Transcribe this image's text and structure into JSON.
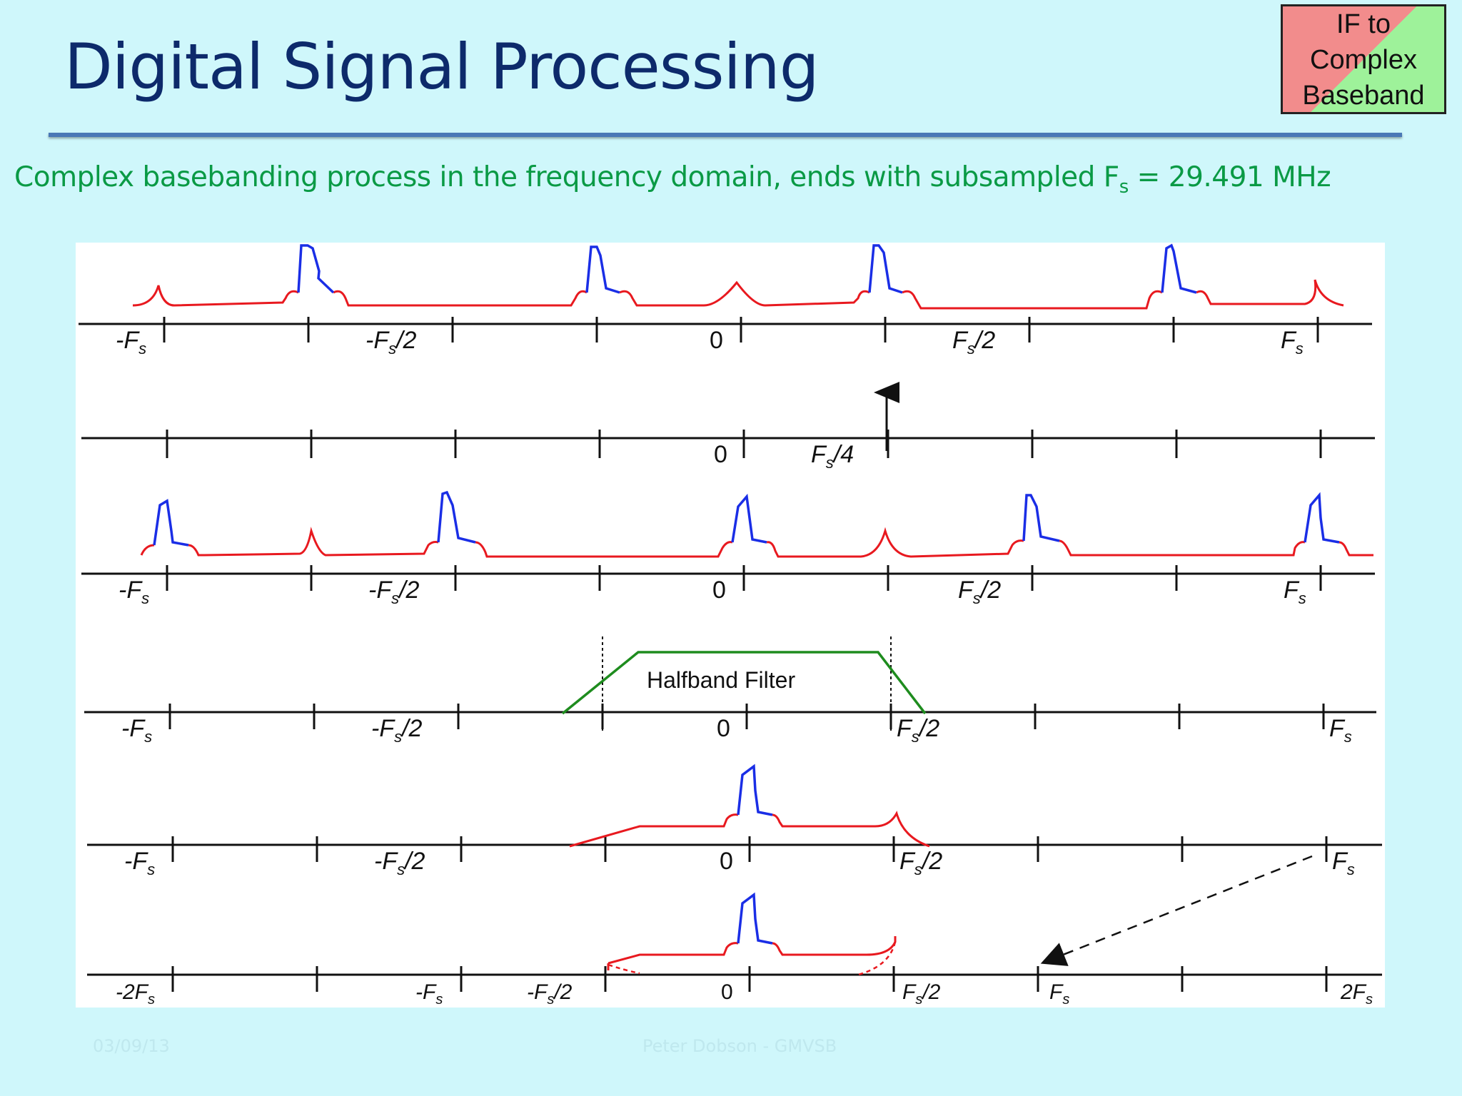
{
  "slide": {
    "title": "Digital Signal Processing",
    "badge": {
      "line1": "IF to",
      "line2": "Complex",
      "line3": "Baseband"
    },
    "subtitle": {
      "text": "Complex basebanding  process in the frequency domain, ends with subsampled F",
      "sub": "s",
      "suffix": " = 29.491 MHz"
    },
    "footer": {
      "left": "03/09/13",
      "center": "Peter Dobson - GMVSB"
    }
  },
  "diagram": {
    "filter_label": "Halfband Filter",
    "axis1": {
      "neg_fs": "-F",
      "neg_half": "-F",
      "zero": "0",
      "pos_half": "F",
      "pos_fs": "F"
    },
    "axis2": {
      "zero": "0",
      "quarter": "F"
    },
    "axis3": {
      "neg_fs": "-F",
      "neg_half": "-F",
      "zero": "0",
      "pos_half": "F",
      "pos_fs": "F"
    },
    "axis4": {
      "neg_fs": "-F",
      "neg_half": "-F",
      "zero": "0",
      "pos_half": "F",
      "pos_fs": "F"
    },
    "axis5": {
      "neg_fs": "-F",
      "neg_half": "-F",
      "zero": "0",
      "pos_half": "F",
      "pos_fs": "F"
    },
    "axis6": {
      "neg_2fs": "-2F",
      "neg_fs": "-F",
      "neg_half": "-F",
      "zero": "0",
      "pos_half": "F",
      "pos_fs": "F",
      "pos_2fs": "2F"
    },
    "sub": "s",
    "half_suffix": "/2",
    "quarter_suffix": "/4",
    "colors": {
      "signal": "#1a2ee6",
      "image": "#e8191f",
      "filter": "#1e8c1e",
      "axis": "#111111"
    }
  }
}
